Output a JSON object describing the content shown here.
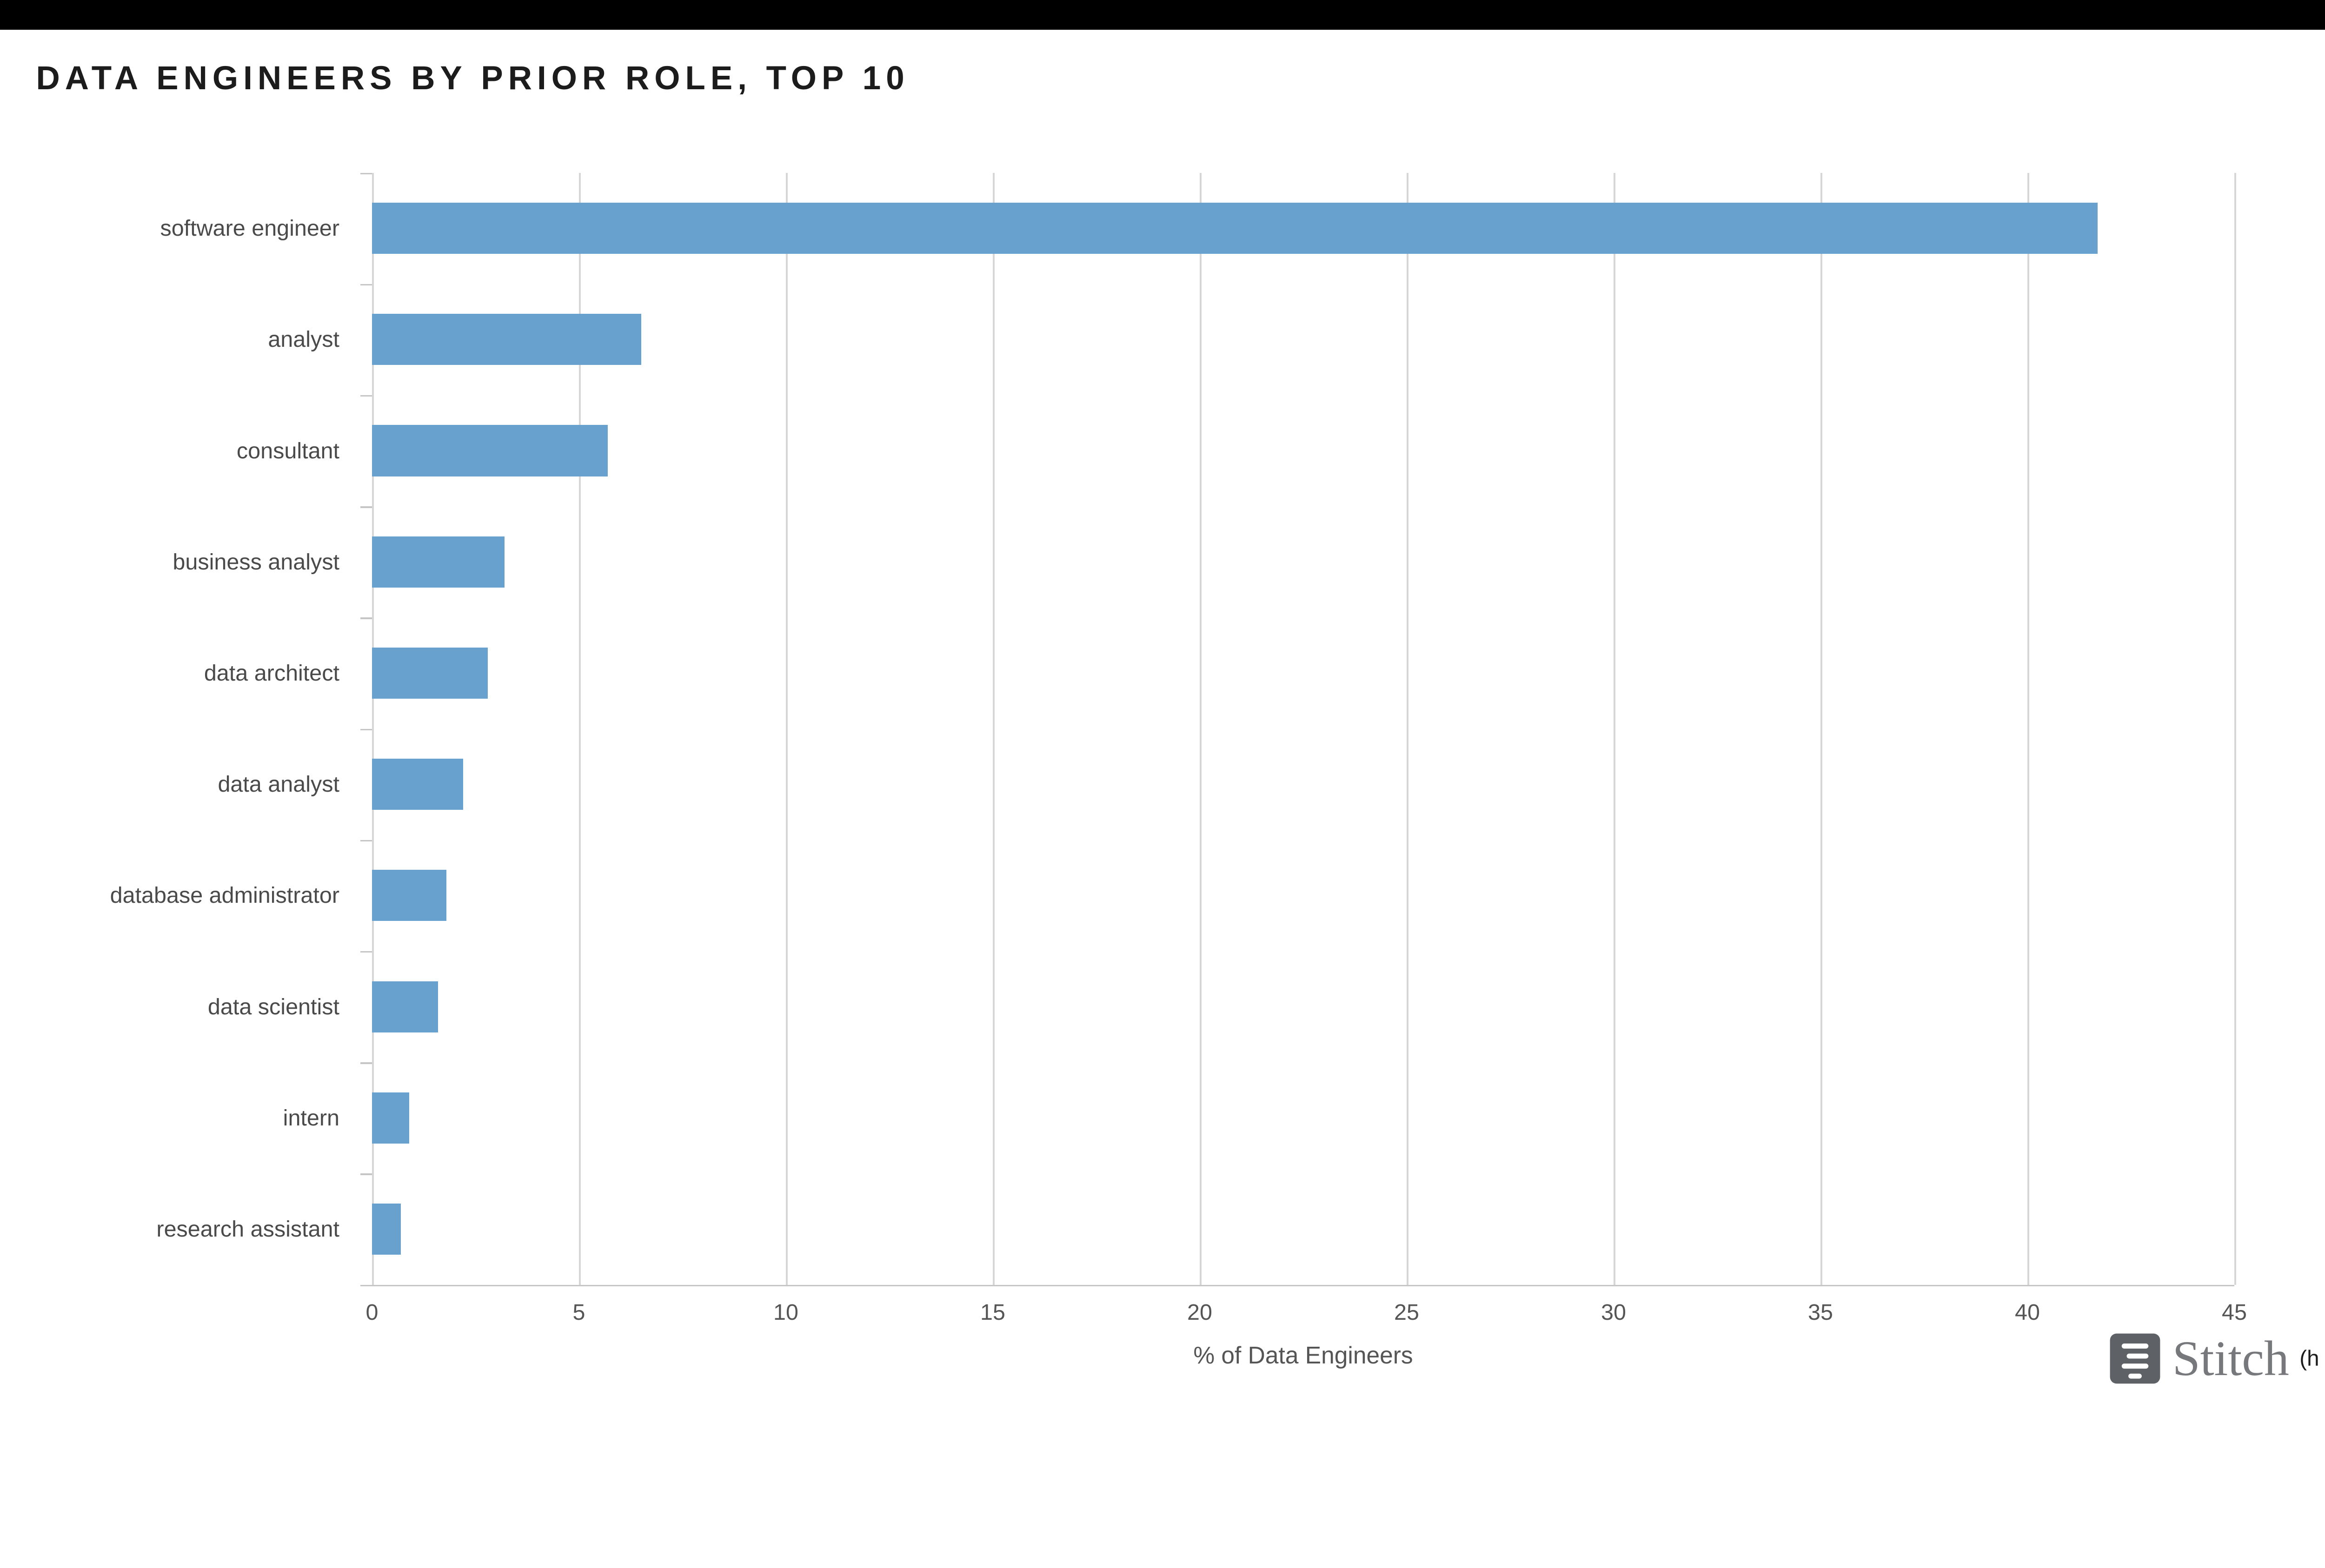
{
  "page": {
    "background": "#ffffff",
    "top_bar_color": "#000000"
  },
  "title": "DATA ENGINEERS BY PRIOR ROLE, TOP 10",
  "chart_data": {
    "type": "bar",
    "orientation": "horizontal",
    "title": "DATA ENGINEERS BY PRIOR ROLE, TOP 10",
    "categories": [
      "software engineer",
      "analyst",
      "consultant",
      "business analyst",
      "data architect",
      "data analyst",
      "database administrator",
      "data scientist",
      "intern",
      "research assistant"
    ],
    "values": [
      41.7,
      6.5,
      5.7,
      3.2,
      2.8,
      2.2,
      1.8,
      1.6,
      0.9,
      0.7
    ],
    "xlabel": "% of Data Engineers",
    "ylabel": "",
    "xlim": [
      0,
      45
    ],
    "xticks": [
      0,
      5,
      10,
      15,
      20,
      25,
      30,
      35,
      40,
      45
    ],
    "grid": true,
    "legend": false,
    "bar_color": "#69A1CE",
    "gridline_color": "#d6d6d6",
    "axis_color": "#c6c6c6",
    "label_color": "#4a4a4a",
    "tick_label_color": "#555555"
  },
  "branding": {
    "logo_text": "Stitch",
    "partial_text": "(h",
    "logo_icon": "stitch-stripes-icon",
    "logo_text_color": "#77787b",
    "logo_icon_color": "#5e6165"
  }
}
